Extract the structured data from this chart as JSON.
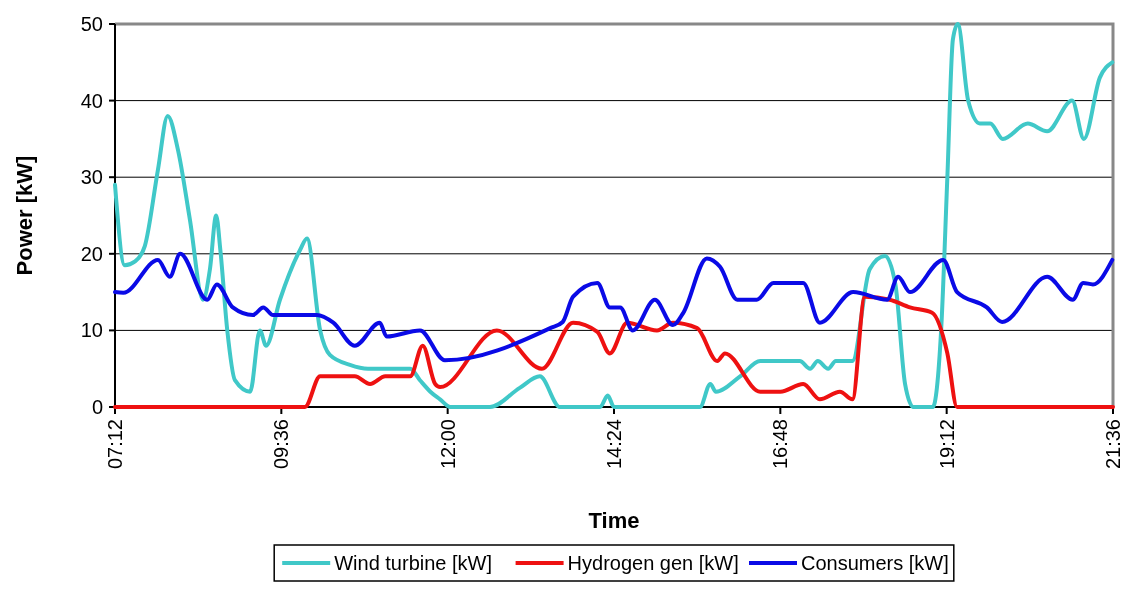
{
  "chart_data": {
    "type": "line",
    "xlabel": "Time",
    "ylabel": "Power [kW]",
    "xlim": [
      7.2,
      21.6
    ],
    "ylim": [
      0,
      50
    ],
    "xticks": [
      {
        "value": 7.2,
        "label": "07:12"
      },
      {
        "value": 9.6,
        "label": "09:36"
      },
      {
        "value": 12,
        "label": "12:00"
      },
      {
        "value": 14.4,
        "label": "14:24"
      },
      {
        "value": 16.8,
        "label": "16:48"
      },
      {
        "value": 19.2,
        "label": "19:12"
      },
      {
        "value": 21.6,
        "label": "21:36"
      }
    ],
    "yticks": [
      0,
      10,
      20,
      30,
      40,
      50
    ],
    "grid": "y",
    "legend": "bottom",
    "marker": "none",
    "line_style": "solid",
    "series": [
      {
        "name": "Wind turbine [kW]",
        "color": "#40c8c8",
        "x": [
          7.2,
          7.34,
          7.49,
          7.63,
          7.82,
          7.96,
          8.11,
          8.28,
          8.47,
          8.57,
          8.66,
          8.72,
          8.82,
          8.93,
          9.15,
          9.29,
          9.38,
          9.58,
          9.87,
          9.97,
          10.16,
          10.3,
          10.59,
          10.85,
          11.1,
          11.46,
          11.6,
          11.75,
          11.89,
          12.04,
          12.61,
          13.04,
          13.33,
          13.62,
          14.2,
          14.31,
          14.4,
          15.64,
          15.79,
          15.87,
          16.22,
          16.51,
          17.08,
          17.23,
          17.34,
          17.49,
          17.6,
          17.84,
          18.09,
          18.31,
          18.46,
          18.6,
          18.72,
          19.0,
          19.12,
          19.21,
          19.29,
          19.36,
          19.51,
          19.68,
          19.83,
          20.01,
          20.37,
          20.65,
          21.01,
          21.18,
          21.41,
          21.59
        ],
        "values": [
          29,
          18.5,
          19,
          21,
          31,
          38,
          33.5,
          24.5,
          14,
          18,
          25,
          20.5,
          10,
          3.5,
          2,
          10,
          8,
          14,
          20.5,
          22,
          10,
          6.8,
          5.5,
          5,
          5,
          5,
          3.5,
          2,
          1,
          0,
          0,
          2.5,
          4,
          0,
          0,
          1.5,
          0,
          0,
          3,
          2,
          4,
          6,
          6,
          5,
          6,
          5,
          6,
          6,
          18,
          19.7,
          16,
          3,
          0,
          0,
          10,
          30,
          48,
          50,
          40,
          37,
          37,
          35,
          37,
          36,
          40,
          35,
          43,
          45
        ]
      },
      {
        "name": "Hydrogen gen [kW]",
        "color": "#ee1111",
        "x": [
          7.2,
          9.94,
          10.16,
          10.66,
          10.88,
          11.1,
          11.46,
          11.64,
          11.82,
          11.89,
          12.71,
          13.36,
          13.81,
          14.16,
          14.34,
          14.59,
          15.02,
          15.25,
          15.6,
          15.89,
          16.0,
          16.51,
          16.8,
          17.13,
          17.37,
          17.66,
          17.84,
          18.02,
          18.38,
          18.67,
          18.99,
          19.21,
          19.35,
          21.6
        ],
        "values": [
          0,
          0,
          4,
          4,
          3,
          4,
          4,
          8,
          3,
          2.6,
          10,
          5,
          11,
          9.8,
          7,
          11,
          10,
          11,
          10.3,
          6,
          7,
          2,
          2,
          3,
          1,
          2,
          1,
          14.4,
          14,
          13,
          12.3,
          7,
          0,
          0
        ]
      },
      {
        "name": "Consumers [kW]",
        "color": "#0a0ae6",
        "x": [
          7.2,
          7.32,
          7.82,
          7.99,
          8.14,
          8.53,
          8.67,
          8.9,
          9.19,
          9.34,
          9.48,
          10.11,
          10.35,
          10.66,
          11.02,
          11.12,
          11.6,
          11.96,
          13.48,
          13.66,
          13.81,
          14.16,
          14.34,
          14.49,
          14.67,
          14.99,
          15.25,
          15.4,
          15.74,
          15.93,
          16.18,
          16.46,
          16.7,
          17.13,
          17.37,
          17.85,
          18.34,
          18.5,
          18.67,
          19.15,
          19.35,
          19.78,
          20.0,
          20.65,
          21.02,
          21.17,
          21.31,
          21.59
        ],
        "values": [
          15,
          14.9,
          19.2,
          17,
          20,
          14,
          16,
          13,
          12,
          13,
          12,
          12,
          11,
          8,
          11,
          9.2,
          10,
          6.1,
          10.3,
          11.1,
          14.4,
          16.2,
          13,
          13,
          10,
          14,
          10.7,
          12.3,
          19.4,
          18.3,
          14,
          14,
          16.2,
          16.2,
          11,
          15,
          14,
          17,
          15,
          19.2,
          15,
          13,
          11.1,
          17,
          14,
          16.2,
          16,
          19.2
        ]
      }
    ]
  }
}
